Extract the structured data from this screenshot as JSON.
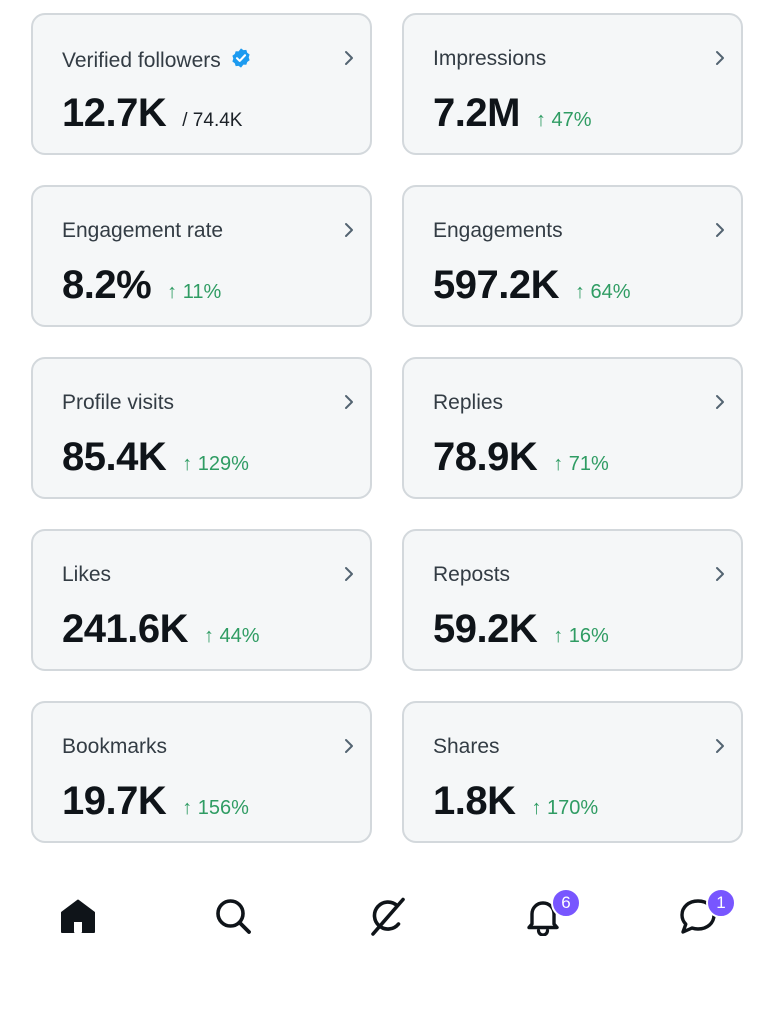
{
  "colors": {
    "accent_green": "#2f9c63",
    "badge_purple": "#7856ff",
    "verified_blue": "#1d9bf0",
    "card_bg": "#f5f7f8",
    "card_border": "#d3d8dc"
  },
  "metrics": [
    {
      "label": "Verified followers",
      "value": "12.7K",
      "total": "/ 74.4K",
      "icon": "verified-badge-icon"
    },
    {
      "label": "Impressions",
      "value": "7.2M",
      "delta": "↑ 47%"
    },
    {
      "label": "Engagement rate",
      "value": "8.2%",
      "delta": "↑ 11%"
    },
    {
      "label": "Engagements",
      "value": "597.2K",
      "delta": "↑ 64%"
    },
    {
      "label": "Profile visits",
      "value": "85.4K",
      "delta": "↑ 129%"
    },
    {
      "label": "Replies",
      "value": "78.9K",
      "delta": "↑ 71%"
    },
    {
      "label": "Likes",
      "value": "241.6K",
      "delta": "↑ 44%"
    },
    {
      "label": "Reposts",
      "value": "59.2K",
      "delta": "↑ 16%"
    },
    {
      "label": "Bookmarks",
      "value": "19.7K",
      "delta": "↑ 156%"
    },
    {
      "label": "Shares",
      "value": "1.8K",
      "delta": "↑ 170%"
    }
  ],
  "tabbar": {
    "items": [
      {
        "name": "home",
        "icon": "home-icon"
      },
      {
        "name": "search",
        "icon": "search-icon"
      },
      {
        "name": "grok",
        "icon": "grok-icon"
      },
      {
        "name": "notifications",
        "icon": "bell-icon",
        "badge": "6"
      },
      {
        "name": "messages",
        "icon": "message-icon",
        "badge": "1"
      }
    ]
  }
}
